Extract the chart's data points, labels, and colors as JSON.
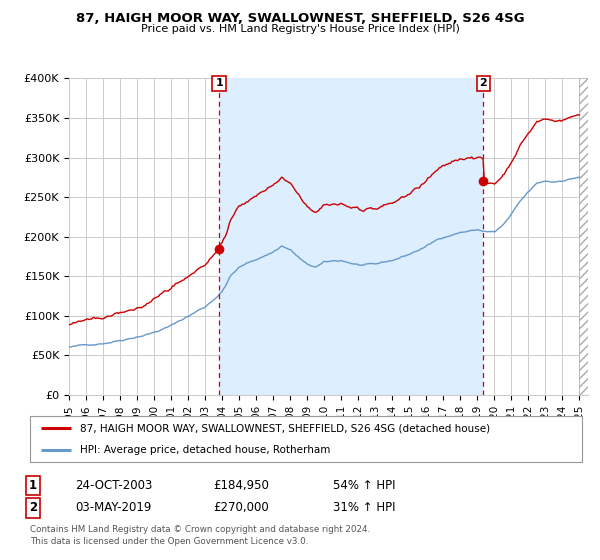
{
  "title": "87, HAIGH MOOR WAY, SWALLOWNEST, SHEFFIELD, S26 4SG",
  "subtitle": "Price paid vs. HM Land Registry's House Price Index (HPI)",
  "ylabel_ticks": [
    "£0",
    "£50K",
    "£100K",
    "£150K",
    "£200K",
    "£250K",
    "£300K",
    "£350K",
    "£400K"
  ],
  "ylim": [
    0,
    400000
  ],
  "yticks": [
    0,
    50000,
    100000,
    150000,
    200000,
    250000,
    300000,
    350000,
    400000
  ],
  "legend_line1": "87, HAIGH MOOR WAY, SWALLOWNEST, SHEFFIELD, S26 4SG (detached house)",
  "legend_line2": "HPI: Average price, detached house, Rotherham",
  "table_row1": [
    "1",
    "24-OCT-2003",
    "£184,950",
    "54% ↑ HPI"
  ],
  "table_row2": [
    "2",
    "03-MAY-2019",
    "£270,000",
    "31% ↑ HPI"
  ],
  "footnote1": "Contains HM Land Registry data © Crown copyright and database right 2024.",
  "footnote2": "This data is licensed under the Open Government Licence v3.0.",
  "sale1_x": 2003.82,
  "sale1_y": 184950,
  "sale2_x": 2019.34,
  "sale2_y": 270000,
  "red_color": "#cc0000",
  "blue_color": "#6699cc",
  "shade_color": "#ddeeff",
  "grid_color": "#cccccc",
  "bg_color": "#ffffff",
  "xlim": [
    1995.0,
    2025.5
  ]
}
